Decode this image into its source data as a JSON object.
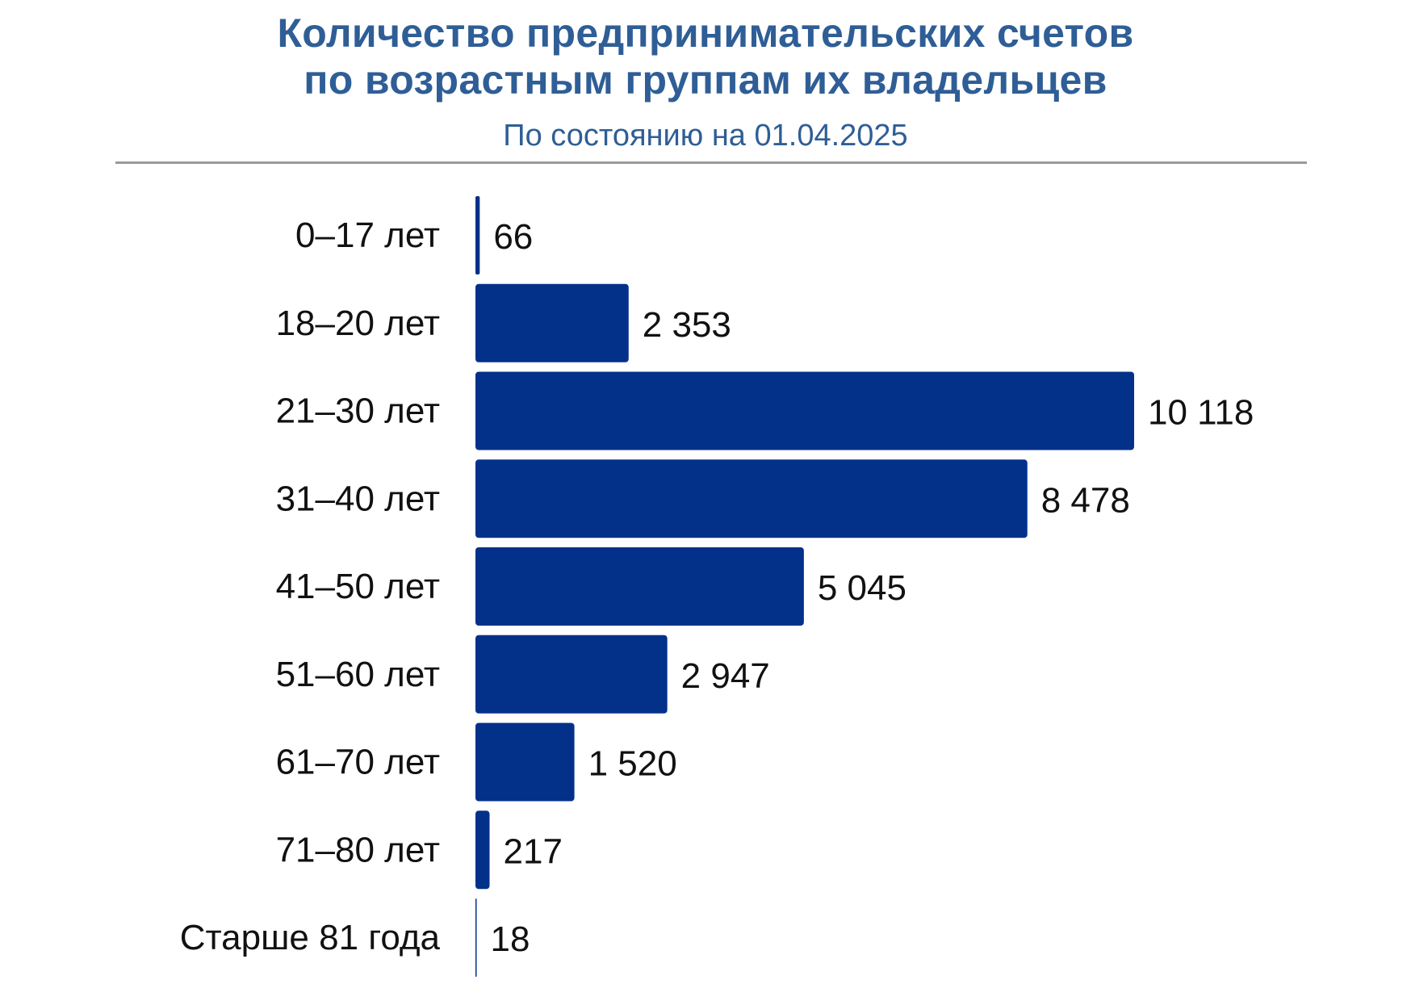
{
  "header": {
    "title_line1": "Количество предпринимательских счетов",
    "title_line2": "по возрастным группам их владельцев",
    "subtitle": "По состоянию на 01.04.2025"
  },
  "colors": {
    "bar": "#03318a",
    "title": "#2f5e96",
    "label": "#111111",
    "divider": "#9a9a9a"
  },
  "chart_data": {
    "type": "bar",
    "orientation": "horizontal",
    "title": "Количество предпринимательских счетов по возрастным группам их владельцев",
    "subtitle": "По состоянию на 01.04.2025",
    "categories": [
      "0–17 лет",
      "18–20 лет",
      "21–30 лет",
      "31–40 лет",
      "41–50 лет",
      "51–60 лет",
      "61–70 лет",
      "71–80 лет",
      "Старше 81 года"
    ],
    "values": [
      66,
      2353,
      10118,
      8478,
      5045,
      2947,
      1520,
      217,
      18
    ],
    "value_labels": [
      "66",
      "2 353",
      "10 118",
      "8 478",
      "5 045",
      "2 947",
      "1 520",
      "217",
      "18"
    ],
    "xlabel": "",
    "ylabel": "",
    "xlim": [
      0,
      10118
    ],
    "grid": false,
    "legend": "none",
    "data_labels": true
  }
}
